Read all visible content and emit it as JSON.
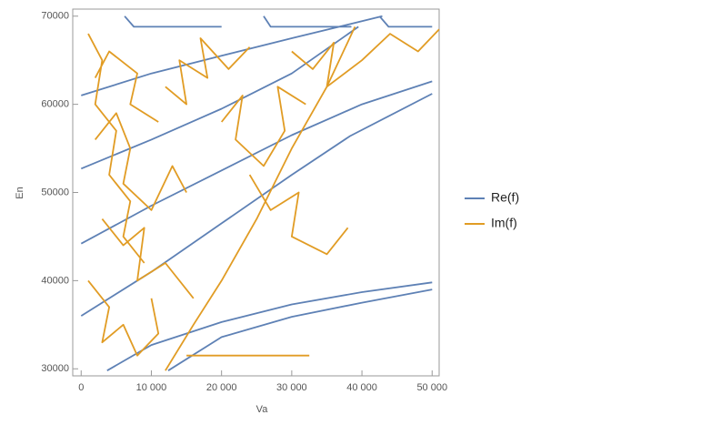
{
  "chart_data": {
    "type": "line",
    "x_label": "Va",
    "y_label": "En",
    "xlim": [
      -1200,
      51000
    ],
    "ylim": [
      29200,
      70800
    ],
    "xticks": [
      0,
      {
        "value": 10000,
        "label": "10 000"
      },
      {
        "value": 20000,
        "label": "20 000"
      },
      {
        "value": 30000,
        "label": "30 000"
      },
      {
        "value": 40000,
        "label": "40 000"
      },
      {
        "value": 50000,
        "label": "50 000"
      }
    ],
    "yticks": [
      30000,
      40000,
      50000,
      60000,
      70000
    ],
    "legend": "right",
    "series": [
      {
        "name": "Re(f)",
        "color": "#5e81b5",
        "x": [
          0,
          10000,
          20000,
          30000,
          42900,
          null,
          0,
          10000,
          20000,
          30000,
          39500,
          null,
          0,
          10000,
          20000,
          30000,
          40000,
          50000,
          null,
          0,
          10000,
          20000,
          30000,
          38300,
          50000,
          null,
          3700,
          10000,
          20000,
          30000,
          40000,
          50000,
          null,
          12400,
          20000,
          30000,
          40000,
          50000,
          null,
          6200,
          7500,
          20000,
          null,
          26000,
          27000,
          38500,
          null,
          42500,
          43800,
          50000
        ],
        "values": [
          61000,
          63500,
          65500,
          67500,
          70000,
          null,
          52700,
          56000,
          59500,
          63500,
          68800,
          null,
          44200,
          48500,
          52500,
          56500,
          60000,
          62600,
          null,
          36000,
          41000,
          46500,
          52000,
          56400,
          61200,
          null,
          29800,
          32700,
          35300,
          37300,
          38700,
          39800,
          null,
          29800,
          33600,
          35900,
          37500,
          39000,
          null,
          70000,
          68800,
          68800,
          null,
          70000,
          68800,
          68800,
          null,
          70000,
          68800,
          68800
        ]
      },
      {
        "name": "Im(f)",
        "color": "#e19c24",
        "x": [
          15000,
          32500,
          null,
          12000,
          16000,
          20000,
          25000,
          30000,
          35000,
          39000,
          null,
          1000,
          3000,
          2000,
          5000,
          4000,
          7000,
          6000,
          9000,
          null,
          1000,
          4000,
          3000,
          6000,
          8000,
          11000,
          10000,
          null,
          2000,
          5000,
          7000,
          6000,
          10000,
          13000,
          15000,
          null,
          12000,
          15000,
          14000,
          18000,
          17000,
          21000,
          24000,
          null,
          20000,
          23000,
          22000,
          26000,
          29000,
          28000,
          32000,
          null,
          30000,
          33000,
          36000,
          35000,
          40000,
          44000,
          48000,
          51000,
          null,
          3000,
          6000,
          9000,
          8000,
          12000,
          16000,
          null,
          2000,
          4000,
          8000,
          7000,
          11000,
          null,
          24000,
          27000,
          31000,
          30000,
          35000,
          38000
        ],
        "values": [
          31500,
          31500,
          null,
          29800,
          35000,
          40000,
          47000,
          55000,
          62000,
          68800,
          null,
          68000,
          65000,
          60000,
          57000,
          52000,
          49000,
          45000,
          42000,
          null,
          40000,
          37000,
          33000,
          35000,
          31500,
          34000,
          38000,
          null,
          56000,
          59000,
          55000,
          51000,
          48000,
          53000,
          50000,
          null,
          62000,
          60000,
          65000,
          63000,
          67500,
          64000,
          66500,
          null,
          58000,
          61000,
          56000,
          53000,
          57000,
          62000,
          60000,
          null,
          66000,
          64000,
          67000,
          62000,
          65000,
          68000,
          66000,
          68500,
          null,
          47000,
          44000,
          46000,
          40000,
          42000,
          38000,
          null,
          63000,
          66000,
          63500,
          60000,
          58000,
          null,
          52000,
          48000,
          50000,
          45000,
          43000,
          46000
        ]
      }
    ]
  }
}
